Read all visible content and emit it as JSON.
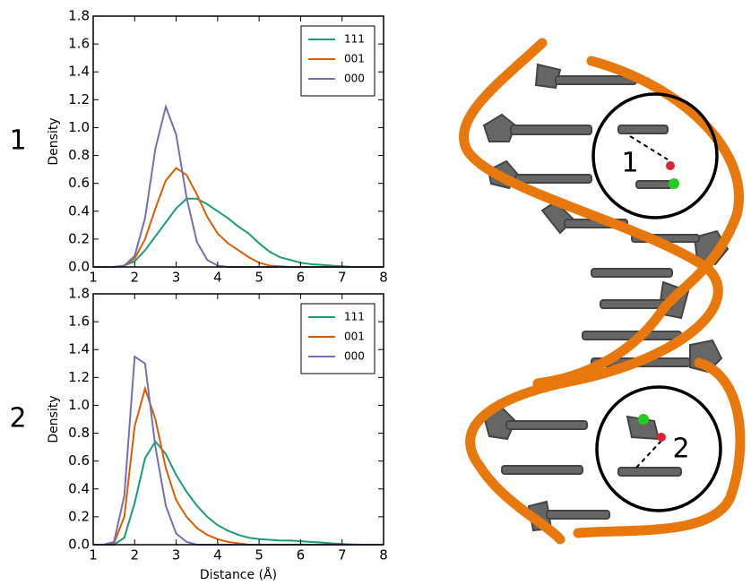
{
  "chart_data": [
    {
      "type": "line",
      "panel_label": "1",
      "ylabel": "Density",
      "legend": "upper right",
      "xlim": [
        1,
        8
      ],
      "xticks": [
        1,
        2,
        3,
        4,
        5,
        6,
        7,
        8
      ],
      "ylim": [
        0,
        1.8
      ],
      "yticks": [
        {
          "value": 0,
          "label": "0.0"
        },
        {
          "value": 0.2,
          "label": "0.2"
        },
        {
          "value": 0.4,
          "label": "0.4"
        },
        {
          "value": 0.6,
          "label": "0.6"
        },
        {
          "value": 0.8,
          "label": "0.8"
        },
        {
          "value": 1.0,
          "label": "1.0"
        },
        {
          "value": 1.2,
          "label": "1.2"
        },
        {
          "value": 1.4,
          "label": "1.4"
        },
        {
          "value": 1.6,
          "label": "1.6"
        },
        {
          "value": 1.8,
          "label": "1.8"
        }
      ],
      "x": [
        1,
        1.25,
        1.5,
        1.75,
        2,
        2.25,
        2.5,
        2.75,
        3,
        3.25,
        3.5,
        3.75,
        4,
        4.25,
        4.5,
        4.75,
        5,
        5.25,
        5.5,
        5.75,
        6,
        6.25,
        6.5,
        6.75,
        7,
        7.25,
        7.5,
        7.75,
        8
      ],
      "series": [
        {
          "name": "111",
          "color": "#1b9e77",
          "values": [
            0,
            0,
            0,
            0.01,
            0.04,
            0.12,
            0.22,
            0.32,
            0.42,
            0.49,
            0.49,
            0.45,
            0.4,
            0.35,
            0.29,
            0.24,
            0.17,
            0.11,
            0.07,
            0.05,
            0.03,
            0.02,
            0.015,
            0.01,
            0.005,
            0,
            0,
            0,
            0
          ]
        },
        {
          "name": "001",
          "color": "#d95f02",
          "values": [
            0,
            0,
            0,
            0.01,
            0.06,
            0.2,
            0.42,
            0.62,
            0.71,
            0.66,
            0.52,
            0.36,
            0.24,
            0.17,
            0.12,
            0.07,
            0.03,
            0.01,
            0.005,
            0,
            0,
            0,
            0,
            0,
            0,
            0,
            0,
            0,
            0
          ]
        },
        {
          "name": "000",
          "color": "#7570b3",
          "values": [
            0,
            0,
            0,
            0.01,
            0.08,
            0.35,
            0.85,
            1.15,
            0.95,
            0.5,
            0.18,
            0.05,
            0.01,
            0,
            0,
            0,
            0,
            0,
            0,
            0,
            0,
            0,
            0,
            0,
            0,
            0,
            0,
            0,
            0
          ]
        }
      ]
    },
    {
      "type": "line",
      "panel_label": "2",
      "ylabel": "Density",
      "xlabel": "Distance (Å)",
      "legend": "upper right",
      "xlim": [
        1,
        8
      ],
      "xticks": [
        1,
        2,
        3,
        4,
        5,
        6,
        7,
        8
      ],
      "ylim": [
        0,
        1.8
      ],
      "yticks": [
        {
          "value": 0,
          "label": "0.0"
        },
        {
          "value": 0.2,
          "label": "0.2"
        },
        {
          "value": 0.4,
          "label": "0.4"
        },
        {
          "value": 0.6,
          "label": "0.6"
        },
        {
          "value": 0.8,
          "label": "0.8"
        },
        {
          "value": 1.0,
          "label": "1.0"
        },
        {
          "value": 1.2,
          "label": "1.2"
        },
        {
          "value": 1.4,
          "label": "1.4"
        },
        {
          "value": 1.6,
          "label": "1.6"
        },
        {
          "value": 1.8,
          "label": "1.8"
        }
      ],
      "x": [
        1,
        1.25,
        1.5,
        1.75,
        2,
        2.25,
        2.5,
        2.75,
        3,
        3.25,
        3.5,
        3.75,
        4,
        4.25,
        4.5,
        4.75,
        5,
        5.25,
        5.5,
        5.75,
        6,
        6.25,
        6.5,
        6.75,
        7,
        7.25,
        7.5,
        7.75,
        8
      ],
      "series": [
        {
          "name": "111",
          "color": "#1b9e77",
          "values": [
            0,
            0,
            0,
            0.05,
            0.3,
            0.62,
            0.74,
            0.65,
            0.5,
            0.38,
            0.28,
            0.2,
            0.14,
            0.1,
            0.07,
            0.05,
            0.04,
            0.035,
            0.03,
            0.03,
            0.025,
            0.02,
            0.015,
            0.01,
            0.005,
            0.002,
            0,
            0,
            0
          ]
        },
        {
          "name": "001",
          "color": "#d95f02",
          "values": [
            0,
            0,
            0.01,
            0.2,
            0.85,
            1.12,
            0.9,
            0.55,
            0.32,
            0.2,
            0.12,
            0.07,
            0.04,
            0.02,
            0.01,
            0,
            0,
            0,
            0,
            0,
            0,
            0,
            0,
            0,
            0,
            0,
            0,
            0,
            0
          ]
        },
        {
          "name": "000",
          "color": "#7570b3",
          "values": [
            0,
            0,
            0.02,
            0.35,
            1.35,
            1.3,
            0.7,
            0.28,
            0.08,
            0.02,
            0,
            0,
            0,
            0,
            0,
            0,
            0,
            0,
            0,
            0,
            0,
            0,
            0,
            0,
            0,
            0,
            0,
            0,
            0
          ]
        }
      ]
    }
  ],
  "image": {
    "markers": [
      "1",
      "2"
    ]
  }
}
